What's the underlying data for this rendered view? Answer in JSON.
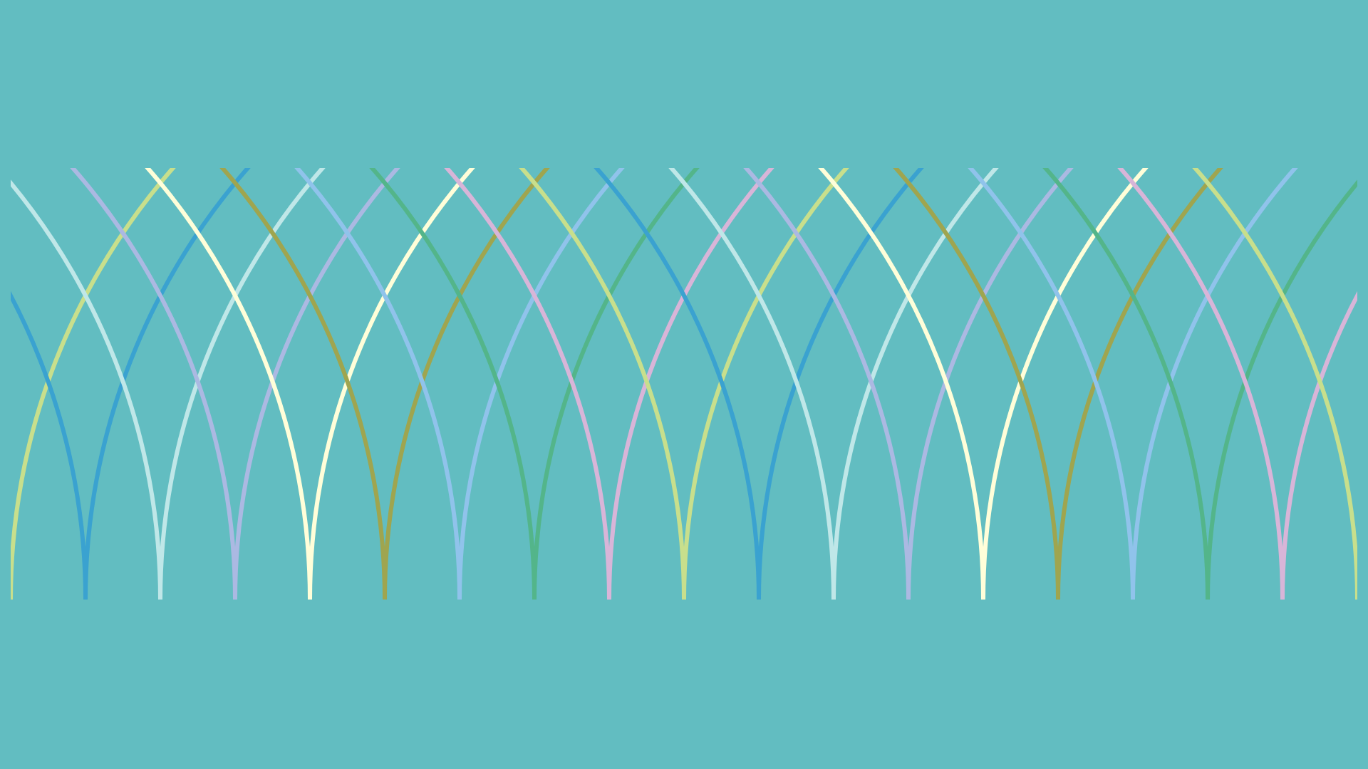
{
  "artwork": {
    "pattern": "overlapping-pointed-arches",
    "arch_count": 19,
    "colors": {
      "background": "#62BDC1",
      "palette": [
        "#C8DF8C",
        "#3AA2D0",
        "#BFE7E8",
        "#ABB9E2",
        "#FFFED9",
        "#9FA54F",
        "#90C3EB",
        "#53B58A",
        "#D8B5D8"
      ]
    }
  }
}
